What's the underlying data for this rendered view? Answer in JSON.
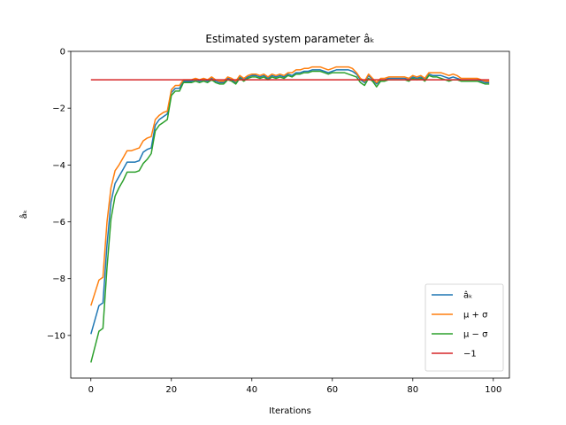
{
  "chart_data": {
    "type": "line",
    "title": "Estimated system parameter âₖ",
    "xlabel": "Iterations",
    "ylabel": "âₖ",
    "xlim": [
      -5,
      104
    ],
    "ylim": [
      -11.5,
      0
    ],
    "xticks": [
      0,
      20,
      40,
      60,
      80,
      100
    ],
    "yticks": [
      0,
      -2,
      -4,
      -6,
      -8,
      -10
    ],
    "grid": false,
    "legend_position": "lower right",
    "series": [
      {
        "name": "âₖ",
        "color": "#1f77b4",
        "x": [
          0,
          2,
          3,
          4,
          5,
          6,
          7,
          8,
          9,
          10,
          11,
          12,
          13,
          14,
          15,
          16,
          17,
          18,
          19,
          20,
          21,
          22,
          23,
          24,
          25,
          26,
          27,
          28,
          29,
          30,
          31,
          32,
          33,
          34,
          35,
          36,
          37,
          38,
          39,
          40,
          41,
          42,
          43,
          44,
          45,
          46,
          47,
          48,
          49,
          50,
          51,
          52,
          53,
          54,
          55,
          56,
          57,
          58,
          59,
          60,
          61,
          62,
          63,
          64,
          65,
          66,
          67,
          68,
          69,
          70,
          71,
          72,
          73,
          74,
          75,
          76,
          77,
          78,
          79,
          80,
          81,
          82,
          83,
          84,
          85,
          86,
          87,
          88,
          89,
          90,
          91,
          92,
          93,
          94,
          95,
          96,
          97,
          98,
          99
        ],
        "y": [
          -9.95,
          -8.95,
          -8.85,
          -6.8,
          -5.3,
          -4.65,
          -4.4,
          -4.15,
          -3.9,
          -3.9,
          -3.9,
          -3.85,
          -3.55,
          -3.45,
          -3.4,
          -2.6,
          -2.4,
          -2.3,
          -2.2,
          -1.45,
          -1.3,
          -1.3,
          -1.05,
          -1.05,
          -1.05,
          -1.0,
          -1.05,
          -1.0,
          -1.05,
          -0.95,
          -1.05,
          -1.1,
          -1.1,
          -0.95,
          -1.0,
          -1.1,
          -0.9,
          -1.0,
          -0.9,
          -0.85,
          -0.85,
          -0.9,
          -0.85,
          -0.95,
          -0.85,
          -0.9,
          -0.85,
          -0.9,
          -0.8,
          -0.85,
          -0.75,
          -0.75,
          -0.7,
          -0.7,
          -0.65,
          -0.65,
          -0.65,
          -0.7,
          -0.75,
          -0.7,
          -0.65,
          -0.65,
          -0.65,
          -0.65,
          -0.7,
          -0.8,
          -1.0,
          -1.1,
          -0.85,
          -1.0,
          -1.15,
          -1.0,
          -1.0,
          -0.95,
          -0.95,
          -0.95,
          -0.95,
          -0.95,
          -1.0,
          -0.9,
          -0.95,
          -0.9,
          -1.0,
          -0.8,
          -0.85,
          -0.85,
          -0.85,
          -0.9,
          -0.95,
          -0.9,
          -0.95,
          -1.0,
          -1.0,
          -1.0,
          -1.0,
          -1.0,
          -1.05,
          -1.1,
          -1.1
        ]
      },
      {
        "name": "μ + σ",
        "color": "#ff7f0e",
        "x": [
          0,
          2,
          3,
          4,
          5,
          6,
          7,
          8,
          9,
          10,
          11,
          12,
          13,
          14,
          15,
          16,
          17,
          18,
          19,
          20,
          21,
          22,
          23,
          24,
          25,
          26,
          27,
          28,
          29,
          30,
          31,
          32,
          33,
          34,
          35,
          36,
          37,
          38,
          39,
          40,
          41,
          42,
          43,
          44,
          45,
          46,
          47,
          48,
          49,
          50,
          51,
          52,
          53,
          54,
          55,
          56,
          57,
          58,
          59,
          60,
          61,
          62,
          63,
          64,
          65,
          66,
          67,
          68,
          69,
          70,
          71,
          72,
          73,
          74,
          75,
          76,
          77,
          78,
          79,
          80,
          81,
          82,
          83,
          84,
          85,
          86,
          87,
          88,
          89,
          90,
          91,
          92,
          93,
          94,
          95,
          96,
          97,
          98,
          99
        ],
        "y": [
          -8.95,
          -8.05,
          -7.95,
          -6.0,
          -4.8,
          -4.2,
          -4.0,
          -3.75,
          -3.5,
          -3.5,
          -3.45,
          -3.4,
          -3.15,
          -3.05,
          -3.0,
          -2.4,
          -2.25,
          -2.15,
          -2.1,
          -1.35,
          -1.2,
          -1.2,
          -1.0,
          -1.0,
          -1.0,
          -0.95,
          -1.0,
          -0.95,
          -1.0,
          -0.9,
          -1.0,
          -1.05,
          -1.05,
          -0.9,
          -0.95,
          -1.05,
          -0.85,
          -0.95,
          -0.85,
          -0.8,
          -0.8,
          -0.85,
          -0.8,
          -0.9,
          -0.8,
          -0.85,
          -0.8,
          -0.85,
          -0.75,
          -0.75,
          -0.65,
          -0.65,
          -0.6,
          -0.6,
          -0.55,
          -0.55,
          -0.55,
          -0.6,
          -0.65,
          -0.6,
          -0.55,
          -0.55,
          -0.55,
          -0.55,
          -0.6,
          -0.75,
          -0.95,
          -1.05,
          -0.8,
          -0.95,
          -1.1,
          -0.95,
          -0.95,
          -0.9,
          -0.9,
          -0.9,
          -0.9,
          -0.9,
          -0.95,
          -0.85,
          -0.9,
          -0.85,
          -0.95,
          -0.75,
          -0.75,
          -0.75,
          -0.75,
          -0.8,
          -0.85,
          -0.8,
          -0.85,
          -0.95,
          -0.95,
          -0.95,
          -0.95,
          -0.95,
          -1.0,
          -1.05,
          -1.05
        ]
      },
      {
        "name": "μ − σ",
        "color": "#2ca02c",
        "x": [
          0,
          2,
          3,
          4,
          5,
          6,
          7,
          8,
          9,
          10,
          11,
          12,
          13,
          14,
          15,
          16,
          17,
          18,
          19,
          20,
          21,
          22,
          23,
          24,
          25,
          26,
          27,
          28,
          29,
          30,
          31,
          32,
          33,
          34,
          35,
          36,
          37,
          38,
          39,
          40,
          41,
          42,
          43,
          44,
          45,
          46,
          47,
          48,
          49,
          50,
          51,
          52,
          53,
          54,
          55,
          56,
          57,
          58,
          59,
          60,
          61,
          62,
          63,
          64,
          65,
          66,
          67,
          68,
          69,
          70,
          71,
          72,
          73,
          74,
          75,
          76,
          77,
          78,
          79,
          80,
          81,
          82,
          83,
          84,
          85,
          86,
          87,
          88,
          89,
          90,
          91,
          92,
          93,
          94,
          95,
          96,
          97,
          98,
          99
        ],
        "y": [
          -10.95,
          -9.85,
          -9.75,
          -7.6,
          -5.9,
          -5.1,
          -4.8,
          -4.55,
          -4.25,
          -4.25,
          -4.25,
          -4.2,
          -3.95,
          -3.8,
          -3.6,
          -2.8,
          -2.6,
          -2.5,
          -2.4,
          -1.55,
          -1.4,
          -1.4,
          -1.1,
          -1.1,
          -1.1,
          -1.05,
          -1.1,
          -1.05,
          -1.1,
          -1.0,
          -1.1,
          -1.15,
          -1.15,
          -1.0,
          -1.05,
          -1.15,
          -0.95,
          -1.05,
          -0.95,
          -0.9,
          -0.9,
          -0.95,
          -0.9,
          -1.0,
          -0.9,
          -0.95,
          -0.9,
          -0.95,
          -0.85,
          -0.9,
          -0.8,
          -0.8,
          -0.75,
          -0.75,
          -0.7,
          -0.7,
          -0.7,
          -0.75,
          -0.8,
          -0.75,
          -0.75,
          -0.75,
          -0.75,
          -0.8,
          -0.85,
          -0.9,
          -1.1,
          -1.2,
          -0.95,
          -1.05,
          -1.25,
          -1.05,
          -1.05,
          -1.0,
          -1.0,
          -1.0,
          -1.0,
          -1.0,
          -1.05,
          -0.95,
          -1.0,
          -0.95,
          -1.05,
          -0.85,
          -0.9,
          -0.9,
          -0.95,
          -1.0,
          -1.05,
          -1.0,
          -1.0,
          -1.05,
          -1.05,
          -1.05,
          -1.05,
          -1.05,
          -1.1,
          -1.15,
          -1.15
        ]
      },
      {
        "name": "−1",
        "color": "#d62728",
        "x": [
          0,
          99
        ],
        "y": [
          -1,
          -1
        ]
      }
    ]
  }
}
